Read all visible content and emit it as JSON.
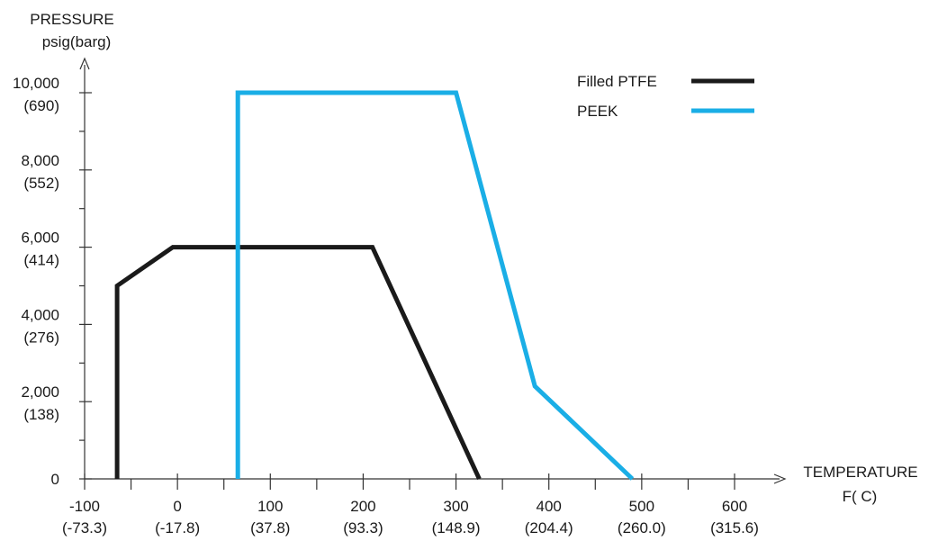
{
  "chart_data": {
    "type": "line",
    "ylabel_line1": "PRESSURE",
    "ylabel_line2": "psig(barg)",
    "xlabel_line1": "TEMPERATURE",
    "xlabel_line2": "F( C)",
    "xlim": [
      -100,
      600
    ],
    "ylim": [
      0,
      10000
    ],
    "x_ticks": [
      {
        "value": -100,
        "label": "-100",
        "sublabel": "(-73.3)"
      },
      {
        "value": 0,
        "label": "0",
        "sublabel": "(-17.8)"
      },
      {
        "value": 100,
        "label": "100",
        "sublabel": "(37.8)"
      },
      {
        "value": 200,
        "label": "200",
        "sublabel": "(93.3)"
      },
      {
        "value": 300,
        "label": "300",
        "sublabel": "(148.9)"
      },
      {
        "value": 400,
        "label": "400",
        "sublabel": "(204.4)"
      },
      {
        "value": 500,
        "label": "500",
        "sublabel": "(260.0)"
      },
      {
        "value": 600,
        "label": "600",
        "sublabel": "(315.6)"
      }
    ],
    "x_minor_ticks": [
      -50,
      50,
      150,
      250,
      350,
      450,
      550
    ],
    "y_ticks": [
      {
        "value": 0,
        "label": "0",
        "sublabel": ""
      },
      {
        "value": 2000,
        "label": "2,000",
        "sublabel": "(138)"
      },
      {
        "value": 4000,
        "label": "4,000",
        "sublabel": "(276)"
      },
      {
        "value": 6000,
        "label": "6,000",
        "sublabel": "(414)"
      },
      {
        "value": 8000,
        "label": "8,000",
        "sublabel": "(552)"
      },
      {
        "value": 10000,
        "label": "10,000",
        "sublabel": "(690)"
      }
    ],
    "y_minor_ticks": [
      1000,
      3000,
      5000,
      7000,
      9000
    ],
    "grid": false,
    "legend_position": "top-right",
    "series": [
      {
        "name": "Filled PTFE",
        "color": "#1a1a1a",
        "points": [
          [
            -65,
            0
          ],
          [
            -65,
            5000
          ],
          [
            -5,
            6000
          ],
          [
            210,
            6000
          ],
          [
            325,
            0
          ]
        ]
      },
      {
        "name": "PEEK",
        "color": "#1aaee6",
        "points": [
          [
            65,
            0
          ],
          [
            65,
            10000
          ],
          [
            300,
            10000
          ],
          [
            385,
            2400
          ],
          [
            490,
            0
          ]
        ]
      }
    ]
  }
}
